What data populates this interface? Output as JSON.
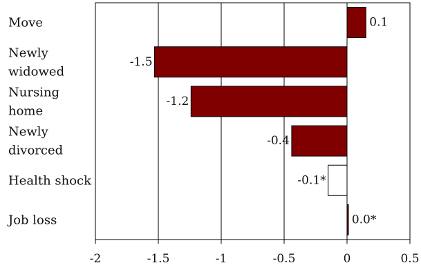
{
  "chart_data": {
    "type": "bar",
    "orientation": "horizontal",
    "categories": [
      [
        "Move"
      ],
      [
        "Newly",
        "widowed"
      ],
      [
        "Nursing",
        "home"
      ],
      [
        "Newly",
        "divorced"
      ],
      [
        "Health shock"
      ],
      [
        "Job loss"
      ]
    ],
    "values": [
      0.15,
      -1.53,
      -1.24,
      -0.44,
      -0.15,
      0.01
    ],
    "data_labels": [
      "0.1",
      "-1.5",
      "-1.2",
      "-0.4",
      "-0.1*",
      "0.0*"
    ],
    "bar_fill": [
      "#800000",
      "#800000",
      "#800000",
      "#800000",
      "#ffffff",
      "#800000"
    ],
    "xlim": [
      -2,
      0.5
    ],
    "xticks": [
      -2,
      -1.5,
      -1,
      -0.5,
      0,
      0.5
    ],
    "xtick_labels": [
      "-2",
      "-1.5",
      "-1",
      "-0.5",
      "0",
      "0.5"
    ],
    "grid": "vertical gridlines at major ticks",
    "title": "",
    "xlabel": "",
    "ylabel": ""
  }
}
